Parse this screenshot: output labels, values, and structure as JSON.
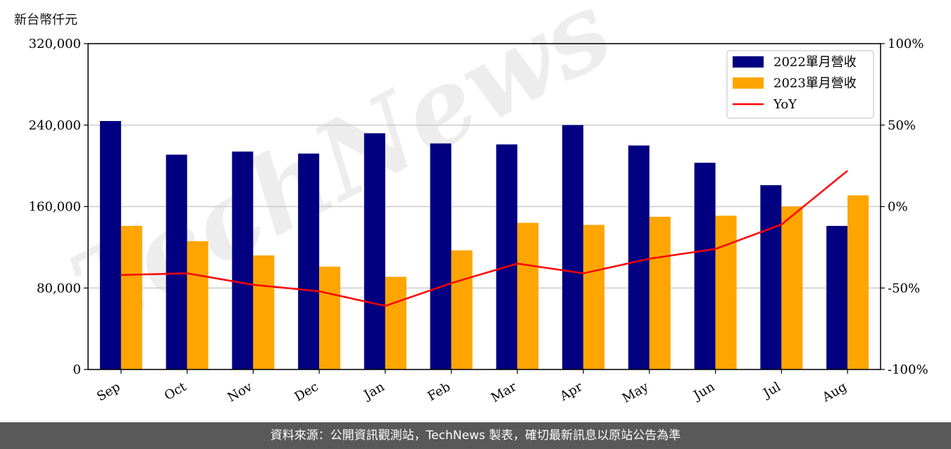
{
  "unit_label": "新台幣仟元",
  "footer_text": "資料來源：公開資訊觀測站，TechNews 製表，確切最新訊息以原站公告為準",
  "watermark_text": "TechNews",
  "colors": {
    "series_2022": "#000080",
    "series_2023": "#FFA500",
    "yoy_line": "#FF0000",
    "grid": "#cccccc",
    "footer_bg": "#595959"
  },
  "chart_data": {
    "type": "bar",
    "categories": [
      "Sep",
      "Oct",
      "Nov",
      "Dec",
      "Jan",
      "Feb",
      "Mar",
      "Apr",
      "May",
      "Jun",
      "Jul",
      "Aug"
    ],
    "series": [
      {
        "name": "2022單月營收",
        "values": [
          244000,
          211000,
          214000,
          212000,
          232000,
          222000,
          221000,
          240000,
          220000,
          203000,
          181000,
          141000
        ]
      },
      {
        "name": "2023單月營收",
        "values": [
          141000,
          126000,
          112000,
          101000,
          91000,
          117000,
          144000,
          142000,
          150000,
          151000,
          160000,
          171000
        ]
      }
    ],
    "line_series": {
      "name": "YoY",
      "values": [
        -42,
        -41,
        -48,
        -52,
        -61,
        -47,
        -35,
        -41,
        -32,
        -26,
        -11,
        22
      ]
    },
    "y_left_ticks": [
      "0",
      "80,000",
      "160,000",
      "240,000",
      "320,000"
    ],
    "y_left_lim": [
      0,
      320000
    ],
    "y_right_ticks": [
      "-100%",
      "-50%",
      "0%",
      "50%",
      "100%"
    ],
    "y_right_lim": [
      -100,
      100
    ],
    "grid": true,
    "legend_position": "top-right"
  }
}
